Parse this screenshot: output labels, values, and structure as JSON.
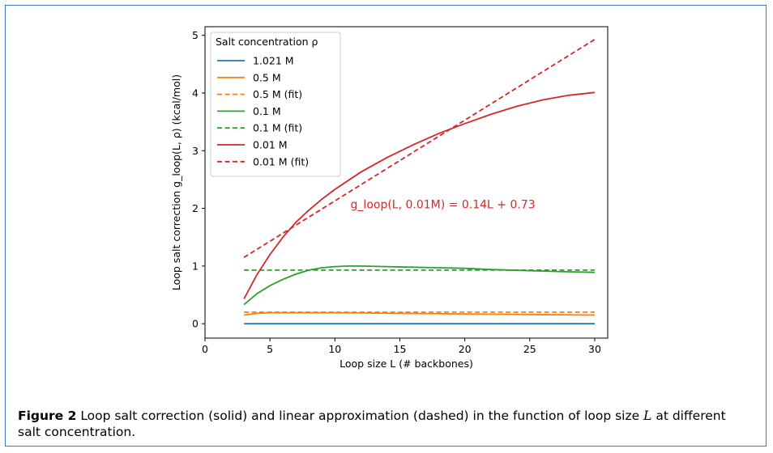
{
  "caption": {
    "label": "Figure 2",
    "text_before": "Loop salt correction (solid) and linear approximation (dashed) in the function of loop size",
    "variable": "L",
    "text_after": "at different salt concentration."
  },
  "chart_data": {
    "type": "line",
    "xlabel": "Loop size L (# backbones)",
    "ylabel": "Loop salt correction g_loop(L, ρ) (kcal/mol)",
    "xlim": [
      0,
      31
    ],
    "ylim": [
      -0.25,
      5.15
    ],
    "xticks": [
      0,
      5,
      10,
      15,
      20,
      25,
      30
    ],
    "yticks": [
      0,
      1,
      2,
      3,
      4,
      5
    ],
    "grid": false,
    "legend": {
      "title": "Salt concentration ρ",
      "placement": "upper-left"
    },
    "annotation": {
      "text": "g_loop(L, 0.01M) = 0.14L + 0.73",
      "x": 11.2,
      "y": 2.0,
      "color": "#d62728"
    },
    "series": [
      {
        "name": "1.021 M",
        "color": "#1f77b4",
        "dash": "solid",
        "x": [
          3,
          30
        ],
        "y": [
          0.0,
          0.0
        ]
      },
      {
        "name": "0.5 M",
        "color": "#ff7f0e",
        "dash": "solid",
        "x": [
          3,
          4,
          5,
          7,
          10,
          15,
          20,
          25,
          30
        ],
        "y": [
          0.15,
          0.18,
          0.19,
          0.19,
          0.19,
          0.18,
          0.17,
          0.16,
          0.15
        ]
      },
      {
        "name": "0.5 M (fit)",
        "color": "#ff7f0e",
        "dash": "dashed",
        "x": [
          3,
          30
        ],
        "y": [
          0.2,
          0.2
        ]
      },
      {
        "name": "0.1 M",
        "color": "#2ca02c",
        "dash": "solid",
        "x": [
          3,
          4,
          5,
          6,
          7,
          8,
          9,
          10,
          11,
          12,
          14,
          16,
          18,
          20,
          22,
          25,
          28,
          30
        ],
        "y": [
          0.33,
          0.52,
          0.66,
          0.77,
          0.86,
          0.93,
          0.97,
          0.99,
          1.0,
          1.0,
          0.99,
          0.98,
          0.97,
          0.96,
          0.94,
          0.92,
          0.9,
          0.89
        ]
      },
      {
        "name": "0.1 M (fit)",
        "color": "#2ca02c",
        "dash": "dashed",
        "x": [
          3,
          30
        ],
        "y": [
          0.93,
          0.93
        ]
      },
      {
        "name": "0.01 M",
        "color": "#d62728",
        "dash": "solid",
        "x": [
          3,
          4,
          5,
          6,
          7,
          8,
          9,
          10,
          12,
          14,
          16,
          18,
          20,
          22,
          24,
          26,
          28,
          30
        ],
        "y": [
          0.43,
          0.85,
          1.2,
          1.5,
          1.76,
          1.97,
          2.16,
          2.33,
          2.63,
          2.88,
          3.1,
          3.3,
          3.47,
          3.63,
          3.77,
          3.88,
          3.96,
          4.01
        ]
      },
      {
        "name": "0.01 M (fit)",
        "color": "#d62728",
        "dash": "dashed",
        "x": [
          3,
          30
        ],
        "y": [
          1.15,
          4.93
        ]
      }
    ]
  }
}
